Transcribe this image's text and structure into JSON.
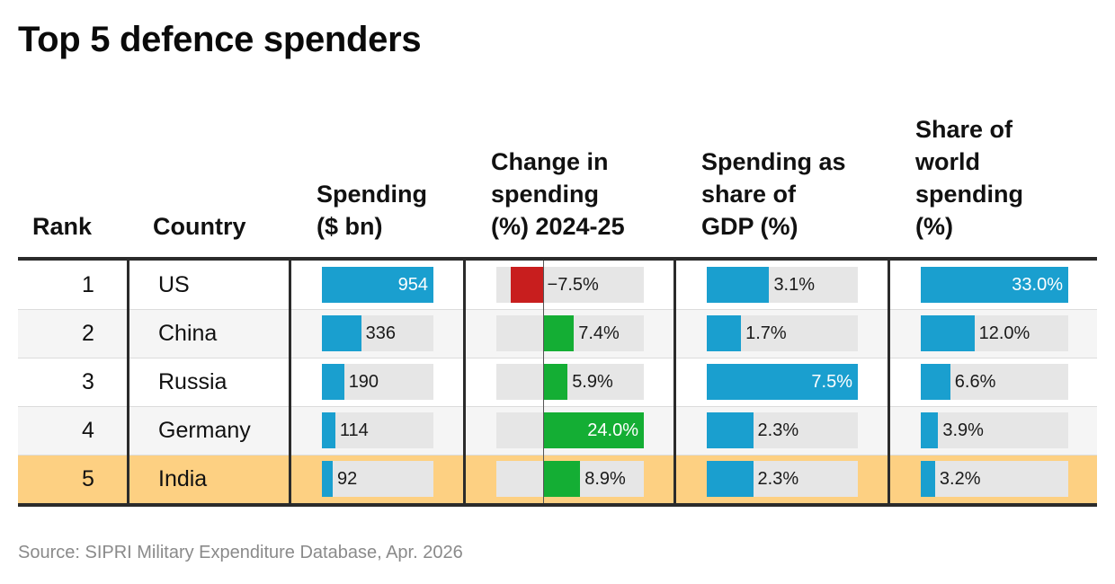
{
  "title": "Top 5 defence spenders",
  "source": "Source: SIPRI Military Expenditure Database, Apr. 2026",
  "headers": {
    "rank": [
      "Rank"
    ],
    "country": [
      "Country"
    ],
    "spending": [
      "Spending",
      "($ bn)"
    ],
    "change": [
      "Change in",
      "spending",
      "(%) 2024-25"
    ],
    "gdp": [
      "Spending as",
      "share of",
      "GDP (%)"
    ],
    "world": [
      "Share of",
      "world",
      "spending",
      "(%)"
    ]
  },
  "colors": {
    "bar": "#1a9fcf",
    "positive": "#14ae34",
    "negative": "#c81e1e",
    "highlight_row": "#fdd082",
    "track": "#e6e6e6"
  },
  "chart_data": {
    "type": "table",
    "highlight_rank": 5,
    "rows": [
      {
        "rank": "1",
        "country": "US",
        "spending": 954,
        "spending_label": "954",
        "change": -7.5,
        "change_label": "−7.5%",
        "gdp": 3.1,
        "gdp_label": "3.1%",
        "world": 33.0,
        "world_label": "33.0%"
      },
      {
        "rank": "2",
        "country": "China",
        "spending": 336,
        "spending_label": "336",
        "change": 7.4,
        "change_label": "7.4%",
        "gdp": 1.7,
        "gdp_label": "1.7%",
        "world": 12.0,
        "world_label": "12.0%"
      },
      {
        "rank": "3",
        "country": "Russia",
        "spending": 190,
        "spending_label": "190",
        "change": 5.9,
        "change_label": "5.9%",
        "gdp": 7.5,
        "gdp_label": "7.5%",
        "world": 6.6,
        "world_label": "6.6%"
      },
      {
        "rank": "4",
        "country": "Germany",
        "spending": 114,
        "spending_label": "114",
        "change": 24.0,
        "change_label": "24.0%",
        "gdp": 2.3,
        "gdp_label": "2.3%",
        "world": 3.9,
        "world_label": "3.9%"
      },
      {
        "rank": "5",
        "country": "India",
        "spending": 92,
        "spending_label": "92",
        "change": 8.9,
        "change_label": "8.9%",
        "gdp": 2.3,
        "gdp_label": "2.3%",
        "world": 3.2,
        "world_label": "3.2%"
      }
    ]
  }
}
